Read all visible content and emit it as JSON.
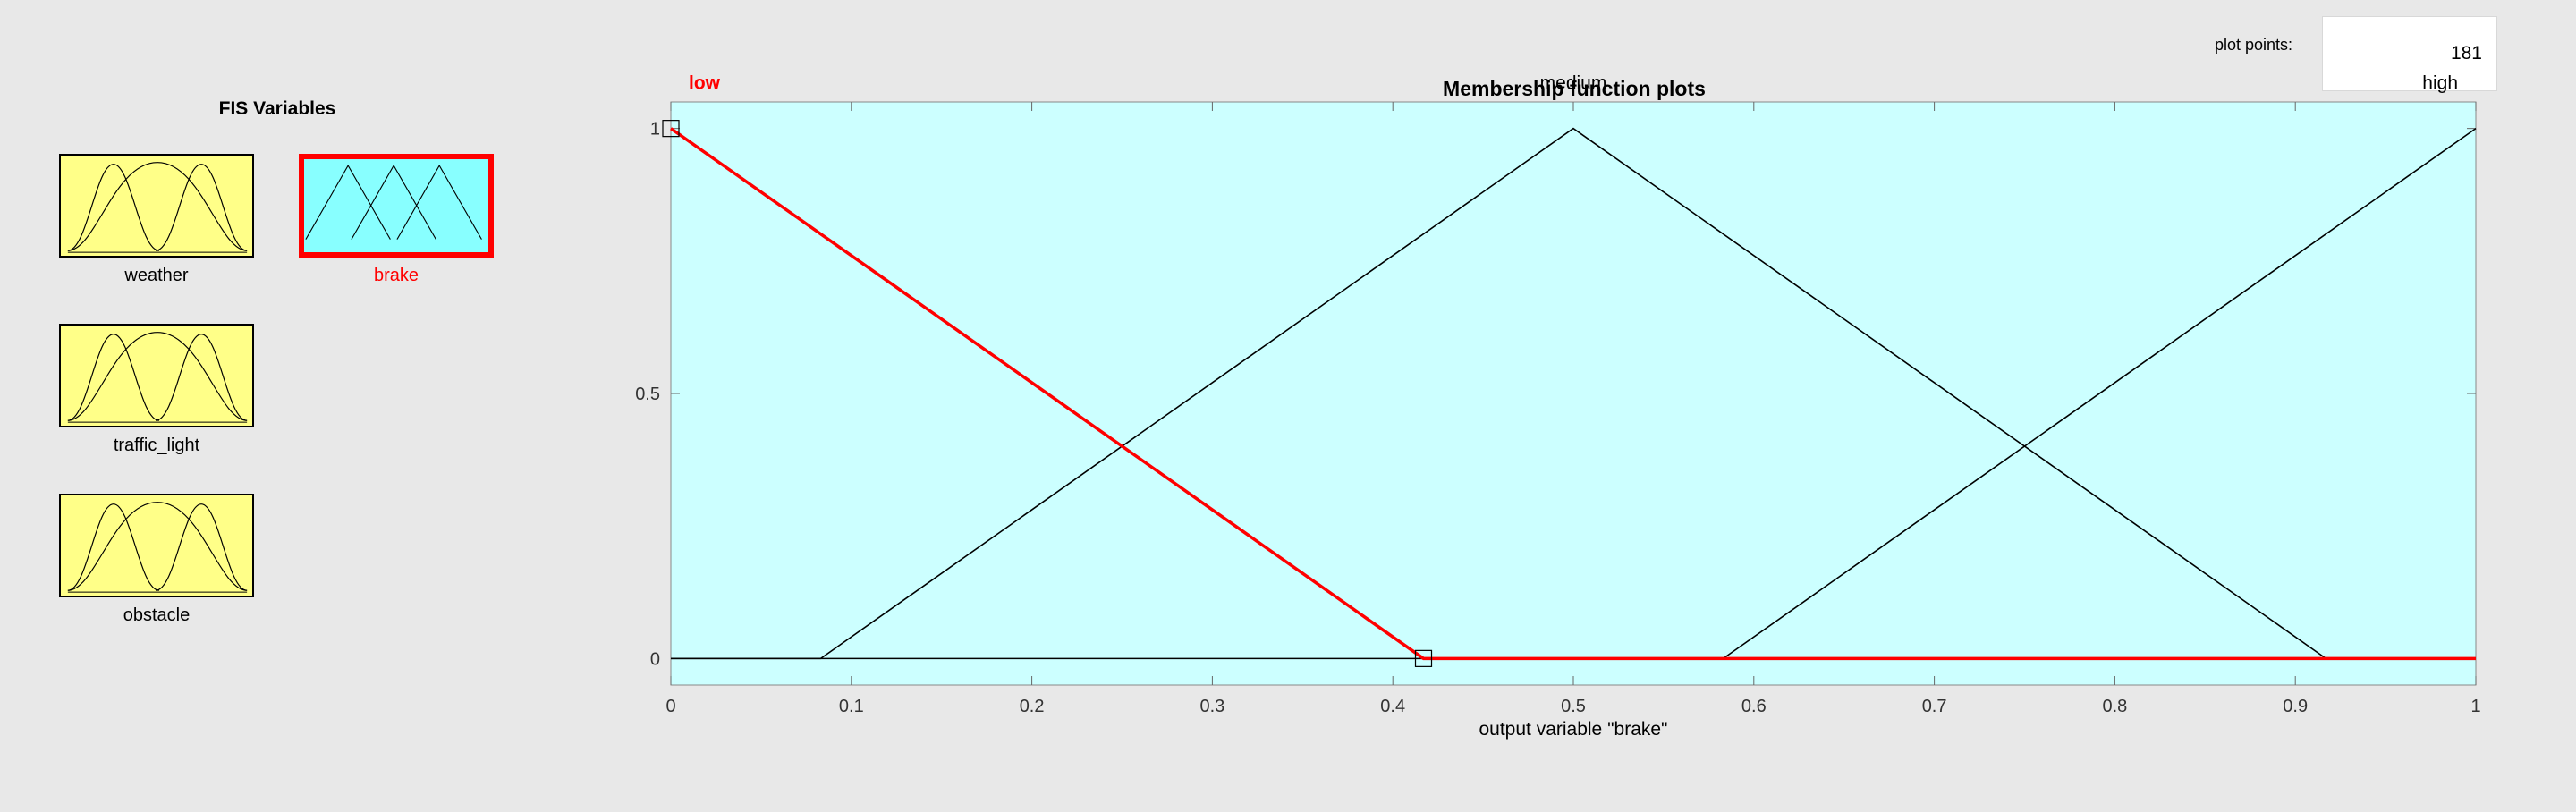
{
  "fis_variables": {
    "title": "FIS Variables",
    "items": [
      {
        "label": "weather",
        "kind": "input",
        "icon": "gaussian-mf-icon"
      },
      {
        "label": "brake",
        "kind": "output",
        "icon": "triangular-mf-icon",
        "selected": true
      },
      {
        "label": "traffic_light",
        "kind": "input",
        "icon": "gaussian-mf-icon"
      },
      {
        "label": "obstacle",
        "kind": "input",
        "icon": "gaussian-mf-icon"
      }
    ]
  },
  "plot_points": {
    "label": "plot points:",
    "value": "181"
  },
  "colors": {
    "background": "#e8e8e8",
    "input_var": "#ffff88",
    "output_var": "#88ffff",
    "plot_bg": "#ccffff",
    "selected": "#ff0000"
  },
  "chart_data": {
    "type": "line",
    "title": "Membership function plots",
    "xlabel": "output variable \"brake\"",
    "xlim": [
      0,
      1
    ],
    "ylim": [
      -0.05,
      1.05
    ],
    "x_ticks": [
      "0",
      "0.1",
      "0.2",
      "0.3",
      "0.4",
      "0.5",
      "0.6",
      "0.7",
      "0.8",
      "0.9",
      "1"
    ],
    "y_ticks": [
      "0",
      "0.5",
      "1"
    ],
    "series": [
      {
        "name": "low",
        "selected": true,
        "x": [
          0,
          0.417,
          1
        ],
        "y": [
          1,
          0,
          0
        ]
      },
      {
        "name": "medium",
        "x": [
          0,
          0.083,
          0.5,
          0.917,
          1
        ],
        "y": [
          0,
          0,
          1,
          0,
          0
        ]
      },
      {
        "name": "high",
        "x": [
          0,
          0.583,
          1
        ],
        "y": [
          0,
          0,
          1
        ]
      }
    ]
  }
}
